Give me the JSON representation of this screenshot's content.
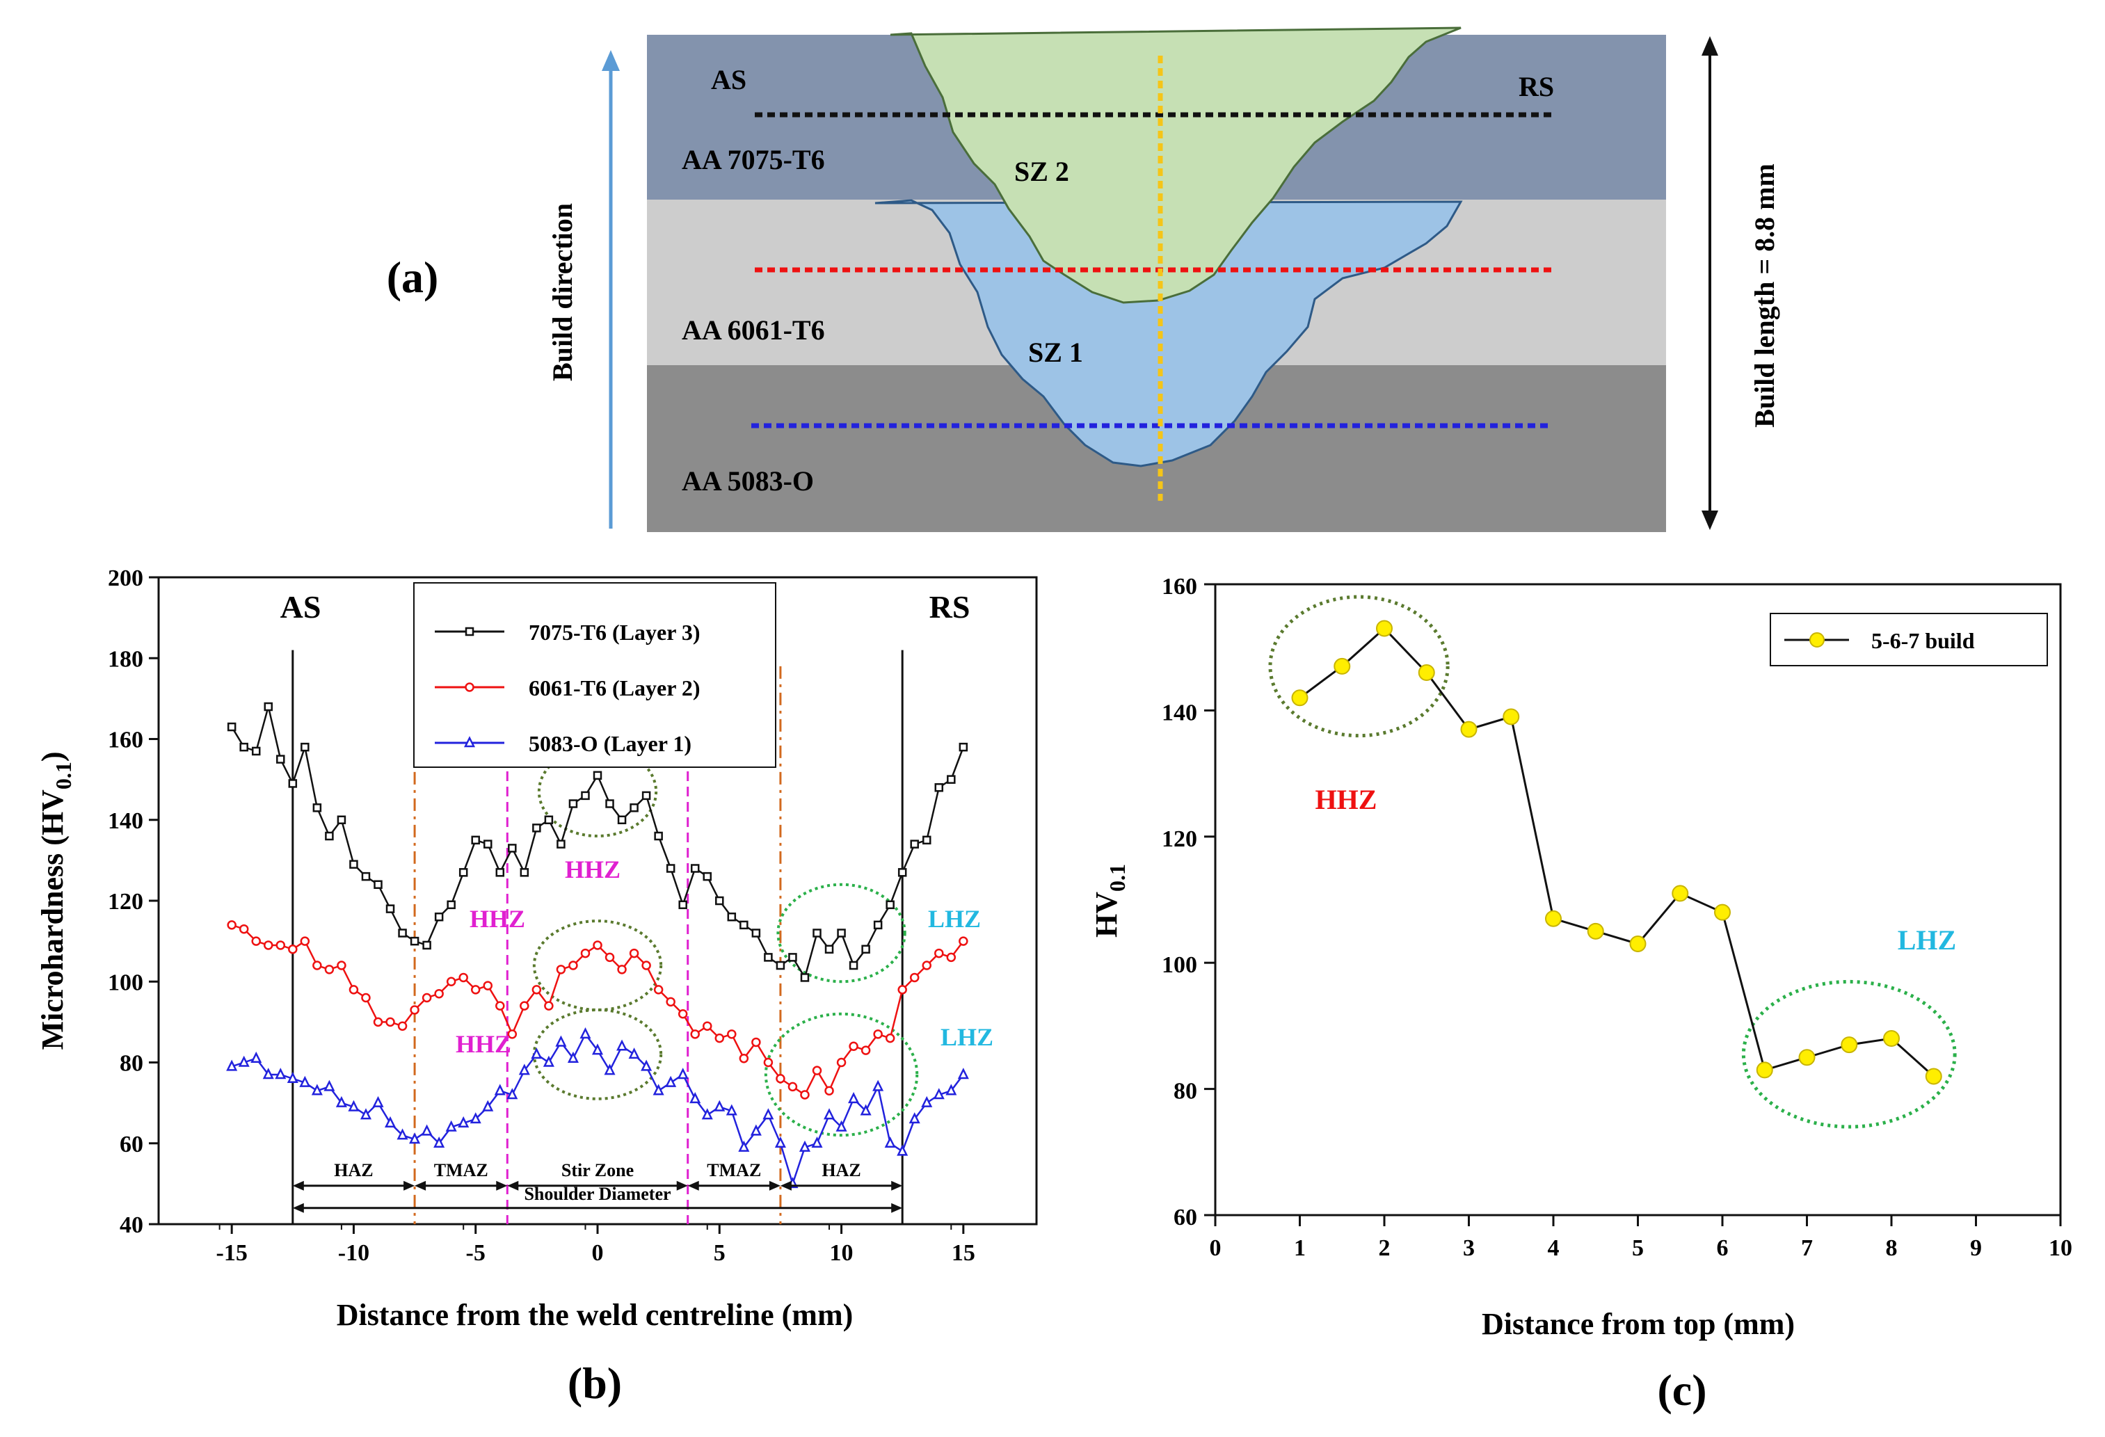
{
  "diagram": {
    "panel_label": "(a)",
    "build_direction": "Build direction",
    "build_length": "Build length = 8.8 mm",
    "side_left": "AS",
    "side_right": "RS",
    "layers": [
      "AA 7075-T6",
      "AA 6061-T6",
      "AA 5083-O"
    ],
    "zones": [
      "SZ 2",
      "SZ 1"
    ],
    "colors": {
      "layer_top": "#8393ad",
      "layer_mid": "#cdcdcd",
      "layer_bottom": "#8c8c8c",
      "sz2": "#c6e0b4",
      "sz1": "#9dc3e6",
      "centerline": "#f5c518",
      "black_line": "#111111",
      "red_line": "#ee1111",
      "blue_line": "#2222dd",
      "arrow_blue": "#5b9bd5"
    }
  },
  "chart_data": [
    {
      "type": "line",
      "panel_label": "(b)",
      "title": "",
      "xlabel": "Distance from the weld centreline (mm)",
      "ylabel": "Microhardness (HV",
      "ylabel_sub": "0.1",
      "ylabel_close": ")",
      "xlim": [
        -18,
        18
      ],
      "ylim": [
        40,
        200
      ],
      "xticks": [
        -15,
        -10,
        -5,
        0,
        5,
        10,
        15
      ],
      "yticks": [
        40,
        60,
        80,
        100,
        120,
        140,
        160,
        180,
        200
      ],
      "legend_position": "top-center",
      "x": [
        -15,
        -14.5,
        -14,
        -13.5,
        -13,
        -12.5,
        -12,
        -11.5,
        -11,
        -10.5,
        -10,
        -9.5,
        -9,
        -8.5,
        -8,
        -7.5,
        -7,
        -6.5,
        -6,
        -5.5,
        -5,
        -4.5,
        -4,
        -3.5,
        -3,
        -2.5,
        -2,
        -1.5,
        -1,
        -0.5,
        0,
        0.5,
        1,
        1.5,
        2,
        2.5,
        3,
        3.5,
        4,
        4.5,
        5,
        5.5,
        6,
        6.5,
        7,
        7.5,
        8,
        8.5,
        9,
        9.5,
        10,
        10.5,
        11,
        11.5,
        12,
        12.5,
        13,
        13.5,
        14,
        14.5,
        15
      ],
      "series": [
        {
          "name": "7075-T6 (Layer 3)",
          "color": "#111111",
          "marker": "square",
          "values": [
            163,
            158,
            157,
            168,
            155,
            149,
            158,
            143,
            136,
            140,
            129,
            126,
            124,
            118,
            112,
            110,
            109,
            116,
            119,
            127,
            135,
            134,
            127,
            133,
            127,
            138,
            140,
            134,
            144,
            146,
            151,
            144,
            140,
            143,
            146,
            136,
            128,
            119,
            128,
            126,
            120,
            116,
            114,
            112,
            106,
            104,
            106,
            101,
            112,
            108,
            112,
            104,
            108,
            114,
            119,
            127,
            134,
            135,
            148,
            150,
            158
          ]
        },
        {
          "name": "6061-T6 (Layer 2)",
          "color": "#ee1111",
          "marker": "circle",
          "values": [
            114,
            113,
            110,
            109,
            109,
            108,
            110,
            104,
            103,
            104,
            98,
            96,
            90,
            90,
            89,
            93,
            96,
            97,
            100,
            101,
            98,
            99,
            94,
            87,
            94,
            98,
            94,
            103,
            104,
            107,
            109,
            106,
            103,
            107,
            104,
            98,
            95,
            92,
            87,
            89,
            86,
            87,
            81,
            85,
            80,
            76,
            74,
            72,
            78,
            73,
            80,
            84,
            83,
            87,
            86,
            98,
            101,
            104,
            107,
            106,
            110
          ]
        },
        {
          "name": "5083-O (Layer 1)",
          "color": "#2222dd",
          "marker": "triangle",
          "values": [
            79,
            80,
            81,
            77,
            77,
            76,
            75,
            73,
            74,
            70,
            69,
            67,
            70,
            65,
            62,
            61,
            63,
            60,
            64,
            65,
            66,
            69,
            73,
            72,
            78,
            82,
            80,
            85,
            81,
            87,
            83,
            78,
            84,
            82,
            79,
            73,
            75,
            77,
            71,
            67,
            69,
            68,
            59,
            63,
            67,
            60,
            50,
            59,
            60,
            67,
            64,
            71,
            68,
            74,
            60,
            58,
            66,
            70,
            72,
            73,
            77
          ]
        }
      ],
      "vertical_lines": {
        "solid": [
          -12.5,
          12.5
        ],
        "dash_dot": [
          -7.5,
          7.5
        ],
        "dashed": [
          -3.7,
          3.7
        ]
      },
      "side_labels": {
        "left": "AS",
        "right": "RS"
      },
      "zone_labels": [
        "HAZ",
        "TMAZ",
        "Stir Zone",
        "TMAZ",
        "HAZ"
      ],
      "bottom_label": "Shoulder Diameter",
      "annotations": {
        "hhz": [
          "HHZ",
          "HHZ",
          "HHZ"
        ],
        "lhz": [
          "LHZ",
          "LHZ"
        ]
      }
    },
    {
      "type": "line",
      "panel_label": "(c)",
      "title": "",
      "xlabel": "Distance from top (mm)",
      "ylabel": "HV",
      "ylabel_sub": "0.1",
      "xlim": [
        0,
        10
      ],
      "ylim": [
        60,
        160
      ],
      "xticks": [
        0,
        1,
        2,
        3,
        4,
        5,
        6,
        7,
        8,
        9,
        10
      ],
      "yticks": [
        60,
        80,
        100,
        120,
        140,
        160
      ],
      "legend_position": "top-right",
      "series": [
        {
          "name": "5-6-7 build",
          "color": "#111111",
          "marker_color": "#ffee00",
          "x": [
            1,
            1.5,
            2,
            2.5,
            3,
            3.5,
            4,
            4.5,
            5,
            5.5,
            6,
            6.5,
            7,
            7.5,
            8,
            8.5
          ],
          "values": [
            142,
            147,
            153,
            146,
            137,
            139,
            107,
            105,
            103,
            111,
            108,
            83,
            85,
            87,
            88,
            82
          ]
        }
      ],
      "annotations": {
        "hhz": "HHZ",
        "lhz": "LHZ"
      }
    }
  ]
}
